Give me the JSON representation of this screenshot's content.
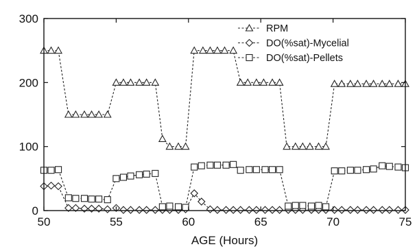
{
  "chart_data": {
    "type": "line",
    "title": "",
    "xlabel": "AGE (Hours)",
    "ylabel": "",
    "xlim": [
      50,
      75
    ],
    "ylim": [
      0,
      300
    ],
    "xticks": [
      50,
      55,
      60,
      65,
      70,
      75
    ],
    "yticks": [
      0,
      100,
      200,
      300
    ],
    "grid": false,
    "legend_position": "top-right",
    "series": [
      {
        "name": "RPM",
        "marker": "triangle",
        "x": [
          50.0,
          50.5,
          51.0,
          51.7,
          52.2,
          52.8,
          53.3,
          53.8,
          54.4,
          55.0,
          55.5,
          56.0,
          56.6,
          57.1,
          57.7,
          58.2,
          58.7,
          59.3,
          59.8,
          60.4,
          61.0,
          61.5,
          62.0,
          62.5,
          63.1,
          63.6,
          64.1,
          64.7,
          65.2,
          65.8,
          66.3,
          66.8,
          67.4,
          67.9,
          68.4,
          69.0,
          69.5,
          70.1,
          70.6,
          71.2,
          71.7,
          72.3,
          72.8,
          73.4,
          73.9,
          74.5,
          75.0
        ],
        "y": [
          250,
          250,
          250,
          150,
          150,
          150,
          150,
          150,
          150,
          200,
          200,
          200,
          200,
          200,
          200,
          112,
          100,
          100,
          100,
          250,
          250,
          250,
          250,
          250,
          250,
          200,
          200,
          200,
          200,
          200,
          200,
          100,
          100,
          100,
          100,
          100,
          100,
          198,
          198,
          198,
          198,
          198,
          198,
          198,
          198,
          198,
          198
        ]
      },
      {
        "name": "DO(%sat)-Mycelial",
        "marker": "diamond",
        "x": [
          50.0,
          50.5,
          51.0,
          51.7,
          52.2,
          52.8,
          53.3,
          53.8,
          54.4,
          55.0,
          55.5,
          56.0,
          56.6,
          57.1,
          57.7,
          58.2,
          58.7,
          59.3,
          59.8,
          60.4,
          60.9,
          61.5,
          62.0,
          62.6,
          63.1,
          63.6,
          64.2,
          64.7,
          65.3,
          65.8,
          66.3,
          66.9,
          67.4,
          67.9,
          68.5,
          69.0,
          69.5,
          70.1,
          70.6,
          71.2,
          71.7,
          72.3,
          72.8,
          73.4,
          73.9,
          74.5,
          75.0
        ],
        "y": [
          38,
          39,
          38,
          4,
          4,
          3,
          3,
          3,
          2,
          4,
          1,
          1,
          1,
          1,
          1,
          1,
          1,
          1,
          2,
          27,
          14,
          2,
          1,
          1,
          1,
          1,
          1,
          1,
          1,
          1,
          1,
          1,
          1,
          1,
          1,
          1,
          1,
          1,
          1,
          1,
          1,
          1,
          1,
          1,
          1,
          1,
          1
        ]
      },
      {
        "name": "DO(%sat)-Pellets",
        "marker": "square",
        "x": [
          50.0,
          50.5,
          51.0,
          51.7,
          52.2,
          52.8,
          53.3,
          53.8,
          54.4,
          55.0,
          55.5,
          56.0,
          56.6,
          57.1,
          57.7,
          58.2,
          58.7,
          59.3,
          59.8,
          60.4,
          60.9,
          61.5,
          62.0,
          62.6,
          63.1,
          63.6,
          64.2,
          64.7,
          65.3,
          65.8,
          66.3,
          66.9,
          67.4,
          67.9,
          68.5,
          69.0,
          69.5,
          70.1,
          70.6,
          71.2,
          71.7,
          72.3,
          72.8,
          73.4,
          73.9,
          74.5,
          75.0
        ],
        "y": [
          63,
          63,
          64,
          20,
          19,
          19,
          18,
          18,
          17,
          50,
          52,
          54,
          56,
          57,
          58,
          6,
          7,
          6,
          5,
          68,
          70,
          71,
          71,
          71,
          72,
          63,
          64,
          64,
          64,
          64,
          64,
          7,
          8,
          8,
          7,
          8,
          6,
          62,
          62,
          63,
          63,
          64,
          65,
          70,
          69,
          68,
          67
        ]
      }
    ]
  }
}
